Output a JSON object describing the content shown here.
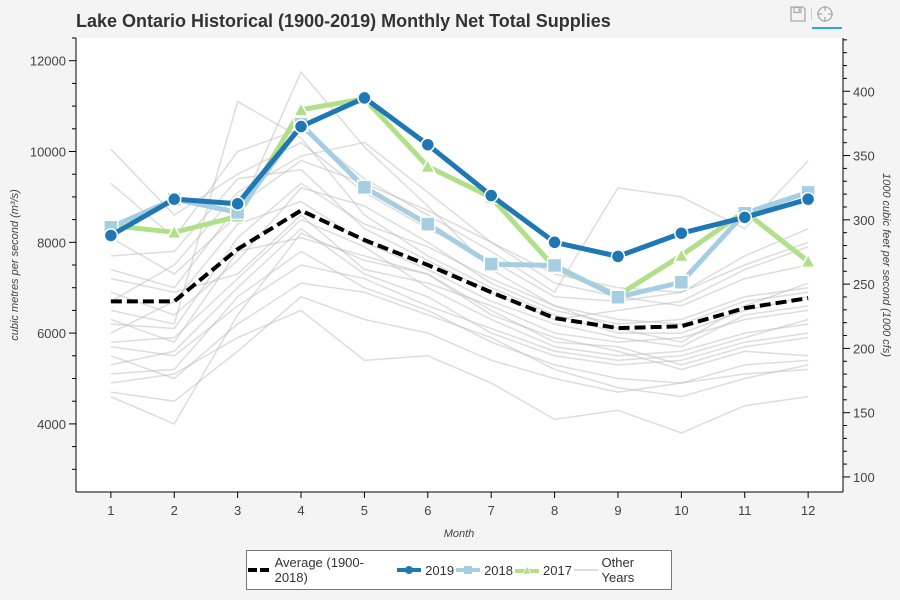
{
  "toolbar": {
    "save_icon": "floppy-disk-icon",
    "crosshair_icon": "crosshair-icon",
    "active_tool": "crosshair"
  },
  "chart_data": {
    "type": "line",
    "title": "Lake Ontario Historical (1900-2019) Monthly Net Total Supplies",
    "xlabel": "Month",
    "ylabel": "cubic metres per second (m³/s)",
    "y2label": "1000 cubic feet per second (1000 cfs)",
    "x": [
      1,
      2,
      3,
      4,
      5,
      6,
      7,
      8,
      9,
      10,
      11,
      12
    ],
    "xlim": [
      0.45,
      12.55
    ],
    "ylim": [
      2500,
      12500
    ],
    "yticks": [
      4000,
      6000,
      8000,
      10000,
      12000
    ],
    "y2ticks": [
      100,
      150,
      200,
      250,
      300,
      350,
      400
    ],
    "grid": false,
    "legend_position": "bottom",
    "series": [
      {
        "name": "Average (1900-2018)",
        "color": "#000000",
        "style": "dashed",
        "marker": "none",
        "values": [
          6700,
          6700,
          7850,
          8700,
          8050,
          7500,
          6900,
          6330,
          6110,
          6150,
          6550,
          6770
        ]
      },
      {
        "name": "2019",
        "color": "#1f78b4",
        "style": "solid",
        "marker": "circle",
        "values": [
          8150,
          8950,
          8850,
          10550,
          11180,
          10150,
          9030,
          8000,
          7690,
          8200,
          8550,
          8950
        ]
      },
      {
        "name": "2018",
        "color": "#a6cee3",
        "style": "solid",
        "marker": "square",
        "values": [
          8330,
          8950,
          8660,
          10600,
          9210,
          8400,
          7520,
          7490,
          6790,
          7120,
          8640,
          9100
        ]
      },
      {
        "name": "2017",
        "color": "#b2df8a",
        "style": "solid",
        "marker": "triangle",
        "values": [
          8370,
          8220,
          8570,
          10920,
          11160,
          9670,
          8990,
          7450,
          6830,
          7710,
          8680,
          7580
        ]
      }
    ],
    "other_years": {
      "name": "Other Years",
      "color": "#bbbbbb",
      "values": [
        [
          10050,
          8600,
          9500,
          10200,
          9100,
          8300,
          7600,
          6800,
          6700,
          6900,
          7500,
          8000
        ],
        [
          4600,
          4000,
          6400,
          8200,
          7600,
          7300,
          6400,
          5900,
          5600,
          5200,
          5600,
          5500
        ],
        [
          5800,
          5900,
          7200,
          8500,
          7900,
          7000,
          6300,
          5700,
          5500,
          5600,
          6000,
          6200
        ],
        [
          6200,
          6100,
          8100,
          9300,
          8400,
          7900,
          7200,
          6600,
          6300,
          6200,
          6700,
          6900
        ],
        [
          7400,
          7000,
          8800,
          9800,
          9300,
          8700,
          8000,
          7100,
          6800,
          6600,
          7200,
          7500
        ],
        [
          5100,
          5200,
          6800,
          7800,
          7000,
          6500,
          5800,
          5300,
          5000,
          4900,
          5300,
          5400
        ],
        [
          6700,
          7500,
          9100,
          9900,
          10200,
          9100,
          8000,
          7300,
          7000,
          6900,
          7700,
          8300
        ],
        [
          8100,
          7300,
          8600,
          11750,
          10100,
          8800,
          7400,
          6600,
          6100,
          5800,
          6600,
          7100
        ],
        [
          5500,
          5000,
          6200,
          7100,
          6900,
          6400,
          5900,
          5200,
          4800,
          4600,
          5000,
          5300
        ],
        [
          6900,
          6400,
          7600,
          9200,
          8800,
          8000,
          7100,
          6500,
          6200,
          6300,
          6800,
          7000
        ],
        [
          6000,
          6700,
          8400,
          8900,
          8000,
          7400,
          6700,
          6200,
          5900,
          5700,
          6400,
          6600
        ],
        [
          9300,
          8100,
          10000,
          10500,
          9400,
          8600,
          7800,
          6900,
          9200,
          9000,
          8300,
          9800
        ],
        [
          4900,
          5100,
          5900,
          6500,
          5400,
          5500,
          4900,
          4100,
          4300,
          3800,
          4400,
          4600
        ],
        [
          7200,
          6900,
          7300,
          8600,
          7400,
          7100,
          6600,
          6000,
          5800,
          5900,
          6300,
          6500
        ],
        [
          5300,
          5600,
          7000,
          8300,
          7300,
          6800,
          6000,
          5500,
          5300,
          5400,
          5800,
          6000
        ],
        [
          6500,
          6200,
          11100,
          10300,
          8600,
          7700,
          7000,
          6400,
          6000,
          6000,
          6500,
          6800
        ],
        [
          5700,
          5500,
          6600,
          7500,
          7200,
          6600,
          6100,
          5600,
          5400,
          5500,
          5900,
          6300
        ],
        [
          7700,
          7800,
          9400,
          9600,
          8300,
          7600,
          6900,
          6300,
          6500,
          6700,
          7400,
          7900
        ],
        [
          6300,
          5800,
          7800,
          8100,
          7700,
          7300,
          6500,
          5800,
          5700,
          5300,
          5700,
          5900
        ],
        [
          4700,
          4500,
          5600,
          6800,
          6300,
          6000,
          5400,
          5000,
          4700,
          4900,
          5100,
          5200
        ]
      ]
    }
  },
  "legend": {
    "items": [
      "Average (1900-2018)",
      "2019",
      "2018",
      "2017",
      "Other Years"
    ]
  }
}
